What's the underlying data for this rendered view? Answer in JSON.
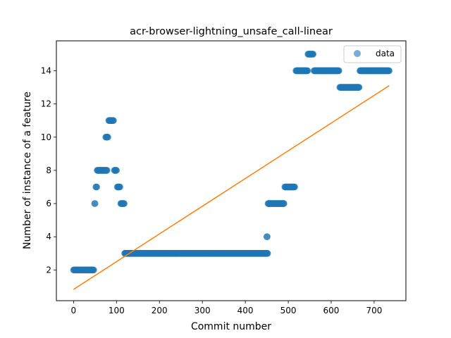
{
  "chart_data": {
    "type": "scatter",
    "title": "acr-browser-lightning_unsafe_call-linear",
    "xlabel": "Commit number",
    "ylabel": "Number of instance of a feature",
    "xlim": [
      -40,
      774
    ],
    "ylim": [
      0.15,
      15.8
    ],
    "xticks": [
      0,
      100,
      200,
      300,
      400,
      500,
      600,
      700
    ],
    "yticks": [
      2,
      4,
      6,
      8,
      10,
      12,
      14
    ],
    "legend": {
      "position": "top-right",
      "entries": [
        "data"
      ]
    },
    "colors": {
      "data": "#1f77b4",
      "fit": "#ff7f0e"
    },
    "grid": false,
    "series": [
      {
        "name": "data",
        "kind": "scatter",
        "segments": [
          {
            "x_start": 0,
            "x_end": 47,
            "y": 2
          },
          {
            "x_start": 49,
            "x_end": 50,
            "y": 6
          },
          {
            "x_start": 52,
            "x_end": 54,
            "y": 7
          },
          {
            "x_start": 55,
            "x_end": 78,
            "y": 8
          },
          {
            "x_start": 75,
            "x_end": 80,
            "y": 10
          },
          {
            "x_start": 82,
            "x_end": 93,
            "y": 11
          },
          {
            "x_start": 95,
            "x_end": 100,
            "y": 8
          },
          {
            "x_start": 102,
            "x_end": 108,
            "y": 7
          },
          {
            "x_start": 110,
            "x_end": 118,
            "y": 6
          },
          {
            "x_start": 119,
            "x_end": 452,
            "y": 3
          },
          {
            "x_start": 450,
            "x_end": 451,
            "y": 4
          },
          {
            "x_start": 453,
            "x_end": 490,
            "y": 6
          },
          {
            "x_start": 492,
            "x_end": 515,
            "y": 7
          },
          {
            "x_start": 518,
            "x_end": 545,
            "y": 14
          },
          {
            "x_start": 546,
            "x_end": 558,
            "y": 15
          },
          {
            "x_start": 560,
            "x_end": 618,
            "y": 14
          },
          {
            "x_start": 620,
            "x_end": 665,
            "y": 13
          },
          {
            "x_start": 667,
            "x_end": 735,
            "y": 14
          }
        ]
      },
      {
        "kind": "line",
        "x": [
          0,
          735
        ],
        "y": [
          0.83,
          13.1
        ]
      }
    ]
  }
}
